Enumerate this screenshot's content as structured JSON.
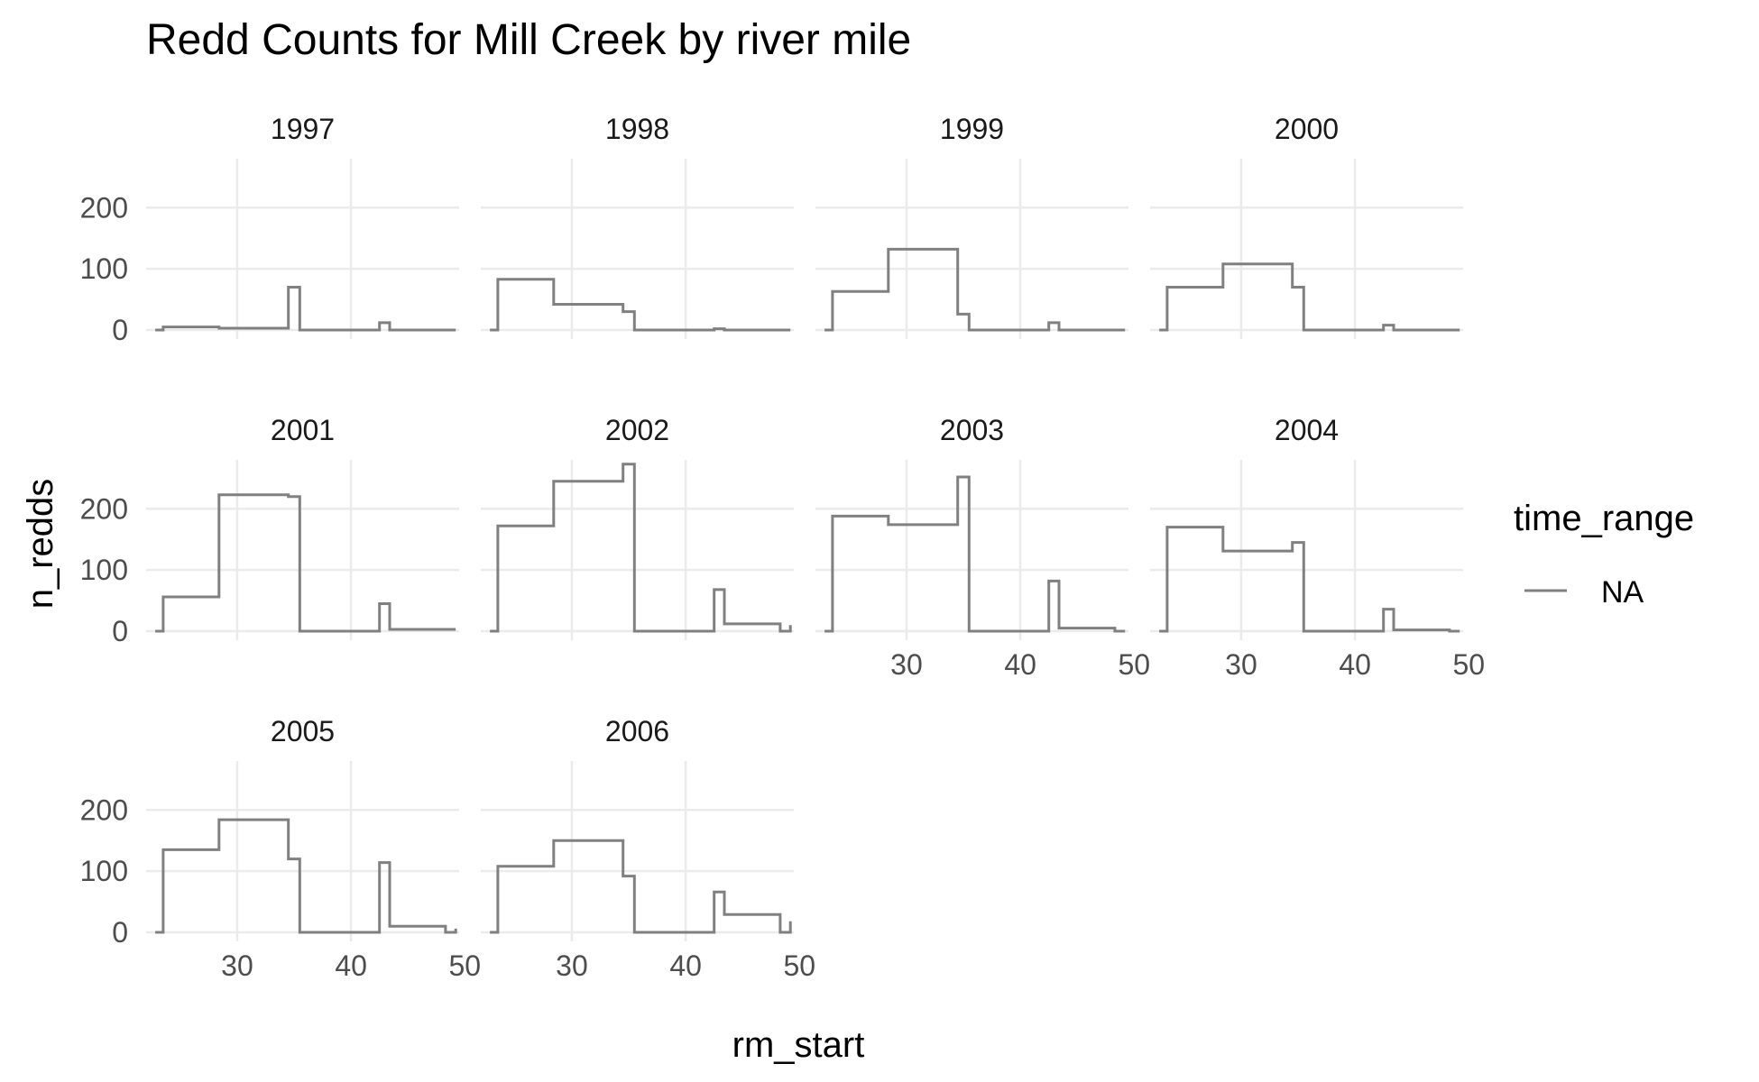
{
  "chart_data": {
    "type": "line",
    "subtype": "step",
    "title": "Redd Counts for Mill Creek by river mile",
    "xlabel": "rm_start",
    "ylabel": "n_redds",
    "xlim": [
      22,
      49.5
    ],
    "ylim": [
      0,
      280
    ],
    "x_ticks": [
      30,
      40,
      50
    ],
    "y_ticks": [
      0,
      100,
      200
    ],
    "grid": true,
    "line_color": "#808080",
    "legend": {
      "title": "time_range",
      "entries": [
        "NA"
      ],
      "position": "right"
    },
    "x": [
      22.8,
      23.5,
      28.4,
      34.5,
      35.5,
      42.5,
      43.4,
      48.3,
      49.2
    ],
    "series": [
      {
        "name": "1997",
        "values": [
          0,
          5,
          3,
          70,
          0,
          12,
          0,
          0,
          0
        ]
      },
      {
        "name": "1998",
        "values": [
          0,
          83,
          42,
          30,
          0,
          2,
          0,
          0,
          0
        ]
      },
      {
        "name": "1999",
        "values": [
          0,
          63,
          132,
          26,
          0,
          12,
          0,
          0,
          0
        ]
      },
      {
        "name": "2000",
        "values": [
          0,
          70,
          108,
          70,
          0,
          8,
          0,
          0,
          0
        ]
      },
      {
        "name": "2001",
        "values": [
          0,
          56,
          223,
          220,
          0,
          45,
          3,
          3,
          3
        ]
      },
      {
        "name": "2002",
        "values": [
          0,
          172,
          245,
          273,
          0,
          68,
          12,
          0,
          10
        ]
      },
      {
        "name": "2003",
        "values": [
          0,
          188,
          174,
          252,
          0,
          82,
          5,
          0,
          0
        ]
      },
      {
        "name": "2004",
        "values": [
          0,
          170,
          131,
          145,
          0,
          36,
          2,
          0,
          0
        ]
      },
      {
        "name": "2005",
        "values": [
          0,
          135,
          184,
          120,
          0,
          114,
          10,
          0,
          6
        ]
      },
      {
        "name": "2006",
        "values": [
          0,
          108,
          150,
          92,
          0,
          66,
          29,
          0,
          18
        ]
      }
    ]
  }
}
